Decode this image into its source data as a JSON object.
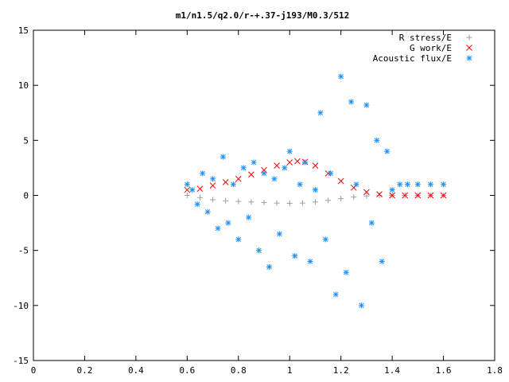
{
  "chart_data": {
    "type": "scatter",
    "title": "m1/n1.5/q2.0/r-+.37-j193/M0.3/512",
    "xlabel": "",
    "ylabel": "",
    "xlim": [
      0,
      1.8
    ],
    "ylim": [
      -15,
      15
    ],
    "xticks": [
      "0",
      "0.2",
      "0.4",
      "0.6",
      "0.8",
      "1",
      "1.2",
      "1.4",
      "1.6",
      "1.8"
    ],
    "yticks": [
      "15",
      "10",
      "5",
      "0",
      "-5",
      "-10",
      "-15"
    ],
    "grid": false,
    "legend_position": "top-right",
    "series": [
      {
        "name": "R stress/E",
        "marker": "plus",
        "color": "#a0a0a0",
        "x": [
          0.6,
          0.65,
          0.7,
          0.75,
          0.8,
          0.85,
          0.9,
          0.95,
          1.0,
          1.05,
          1.1,
          1.15,
          1.2,
          1.25,
          1.3,
          1.35,
          1.4,
          1.45,
          1.5,
          1.55,
          1.6
        ],
        "y": [
          0.0,
          -0.2,
          -0.4,
          -0.5,
          -0.55,
          -0.6,
          -0.65,
          -0.7,
          -0.72,
          -0.7,
          -0.6,
          -0.45,
          -0.3,
          -0.15,
          -0.05,
          0.0,
          0.0,
          0.0,
          0.0,
          0.0,
          0.0
        ]
      },
      {
        "name": "G work/E",
        "marker": "cross",
        "color": "#ff0000",
        "x": [
          0.6,
          0.65,
          0.7,
          0.75,
          0.8,
          0.85,
          0.9,
          0.95,
          1.0,
          1.03,
          1.06,
          1.1,
          1.15,
          1.2,
          1.25,
          1.3,
          1.35,
          1.4,
          1.45,
          1.5,
          1.55,
          1.6
        ],
        "y": [
          0.5,
          0.6,
          0.9,
          1.2,
          1.5,
          1.9,
          2.3,
          2.7,
          3.0,
          3.1,
          3.05,
          2.7,
          2.0,
          1.3,
          0.7,
          0.3,
          0.1,
          0.0,
          0.0,
          0.0,
          0.0,
          0.0
        ]
      },
      {
        "name": "Acoustic flux/E",
        "marker": "star",
        "color": "#1e90ff",
        "x": [
          0.6,
          0.62,
          0.64,
          0.66,
          0.68,
          0.7,
          0.72,
          0.74,
          0.76,
          0.78,
          0.8,
          0.82,
          0.84,
          0.86,
          0.88,
          0.9,
          0.92,
          0.94,
          0.96,
          0.98,
          1.0,
          1.02,
          1.04,
          1.06,
          1.08,
          1.1,
          1.12,
          1.14,
          1.16,
          1.18,
          1.2,
          1.22,
          1.24,
          1.26,
          1.28,
          1.3,
          1.32,
          1.34,
          1.36,
          1.38,
          1.4,
          1.43,
          1.46,
          1.5,
          1.55,
          1.6
        ],
        "y": [
          1.0,
          0.5,
          -0.8,
          2.0,
          -1.5,
          1.5,
          -3.0,
          3.5,
          -2.5,
          1.0,
          -4.0,
          2.5,
          -2.0,
          3.0,
          -5.0,
          2.0,
          -6.5,
          1.5,
          -3.5,
          2.5,
          4.0,
          -5.5,
          1.0,
          3.0,
          -6.0,
          0.5,
          7.5,
          -4.0,
          2.0,
          -9.0,
          10.8,
          -7.0,
          8.5,
          1.0,
          -10.0,
          8.2,
          -2.5,
          5.0,
          -6.0,
          4.0,
          0.5,
          1.0,
          1.0,
          1.0,
          1.0,
          1.0
        ]
      }
    ]
  }
}
